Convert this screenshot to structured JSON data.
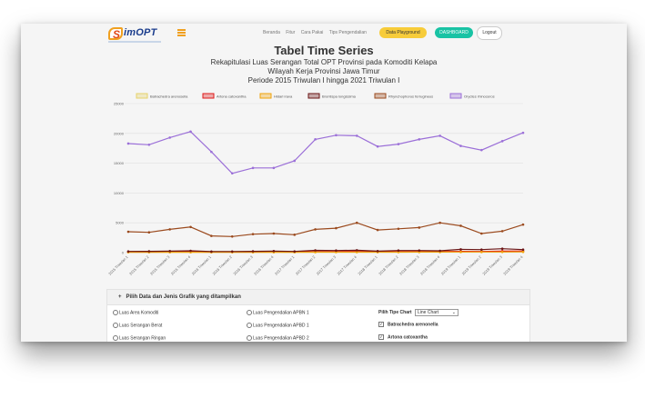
{
  "navbar": {
    "logo_mark": "S",
    "logo_text": "imOPT",
    "links": [
      "Beranda",
      "Fitur",
      "Cara Pakai",
      "Tips Pengendalian"
    ],
    "btn_playground": "Data Playground",
    "btn_dashboard": "DASHBOARD",
    "btn_logout": "Logout"
  },
  "header": {
    "title": "Tabel Time Series",
    "subtitle1": "Rekapitulasi Luas Serangan Total OPT Provinsi pada Komoditi Kelapa",
    "subtitle2": "Wilayah Kerja Provinsi Jawa Timur",
    "subtitle3": "Periode 2015 Triwulan I hingga 2021 Triwulan I"
  },
  "chart_data": {
    "type": "line",
    "x": [
      "2015 Triwulan 1",
      "2015 Triwulan 2",
      "2015 Triwulan 3",
      "2015 Triwulan 4",
      "2016 Triwulan 1",
      "2016 Triwulan 2",
      "2016 Triwulan 3",
      "2016 Triwulan 4",
      "2017 Triwulan 1",
      "2017 Triwulan 2",
      "2017 Triwulan 3",
      "2017 Triwulan 4",
      "2018 Triwulan 1",
      "2018 Triwulan 2",
      "2018 Triwulan 3",
      "2018 Triwulan 4",
      "2019 Triwulan 1",
      "2019 Triwulan 2",
      "2019 Triwulan 3",
      "2019 Triwulan 4"
    ],
    "ylim": [
      0,
      25000
    ],
    "yticks": [
      0,
      5000,
      10000,
      15000,
      20000,
      25000
    ],
    "grid": true,
    "legend_position": "top",
    "series": [
      {
        "name": "Batrachedra arenosella",
        "color": "#e6d26a",
        "values": [
          150,
          150,
          150,
          150,
          150,
          150,
          150,
          150,
          150,
          150,
          150,
          150,
          150,
          150,
          150,
          150,
          150,
          150,
          150,
          150
        ]
      },
      {
        "name": "Artona catoxantha",
        "color": "#e01c1c",
        "values": [
          100,
          120,
          130,
          150,
          100,
          100,
          110,
          130,
          120,
          160,
          180,
          200,
          150,
          180,
          200,
          200,
          220,
          200,
          250,
          280
        ]
      },
      {
        "name": "Hidari irava",
        "color": "#f0a30a",
        "values": [
          50,
          50,
          60,
          60,
          50,
          50,
          50,
          60,
          60,
          70,
          80,
          80,
          70,
          80,
          90,
          90,
          100,
          100,
          110,
          120
        ]
      },
      {
        "name": "Brontispa longissima",
        "color": "#6b1515",
        "values": [
          200,
          220,
          250,
          300,
          180,
          180,
          220,
          250,
          200,
          380,
          350,
          400,
          250,
          350,
          350,
          300,
          550,
          500,
          650,
          500
        ]
      },
      {
        "name": "Rhynchophorus ferrugineus",
        "color": "#9b4a1e",
        "values": [
          3500,
          3400,
          3900,
          4300,
          2800,
          2700,
          3100,
          3200,
          3000,
          3900,
          4100,
          5000,
          3800,
          4000,
          4200,
          5000,
          4500,
          3200,
          3600,
          4700
        ]
      },
      {
        "name": "Oryctes rhinoceros",
        "color": "#9b6fd8",
        "values": [
          18300,
          18100,
          19300,
          20300,
          16900,
          13300,
          14200,
          14200,
          15400,
          19000,
          19700,
          19600,
          17800,
          18200,
          19000,
          19600,
          17900,
          17200,
          18700,
          20100
        ]
      }
    ]
  },
  "panel": {
    "title": "Pilih Data dan Jenis Grafik yang ditampilkan",
    "col1": [
      "Luas Area Komoditi",
      "Luas Serangan Berat",
      "Luas Serangan Ringan"
    ],
    "col2": [
      "Luas Pengendalian APBN 1",
      "Luas Pengendalian APBD 1",
      "Luas Pengendalian APBD 2"
    ],
    "chart_type_label": "Pilih Tipe Chart",
    "chart_type_value": "Line Chart",
    "checked": [
      "Batrachedra arenonella",
      "Artona catoxantha"
    ]
  }
}
